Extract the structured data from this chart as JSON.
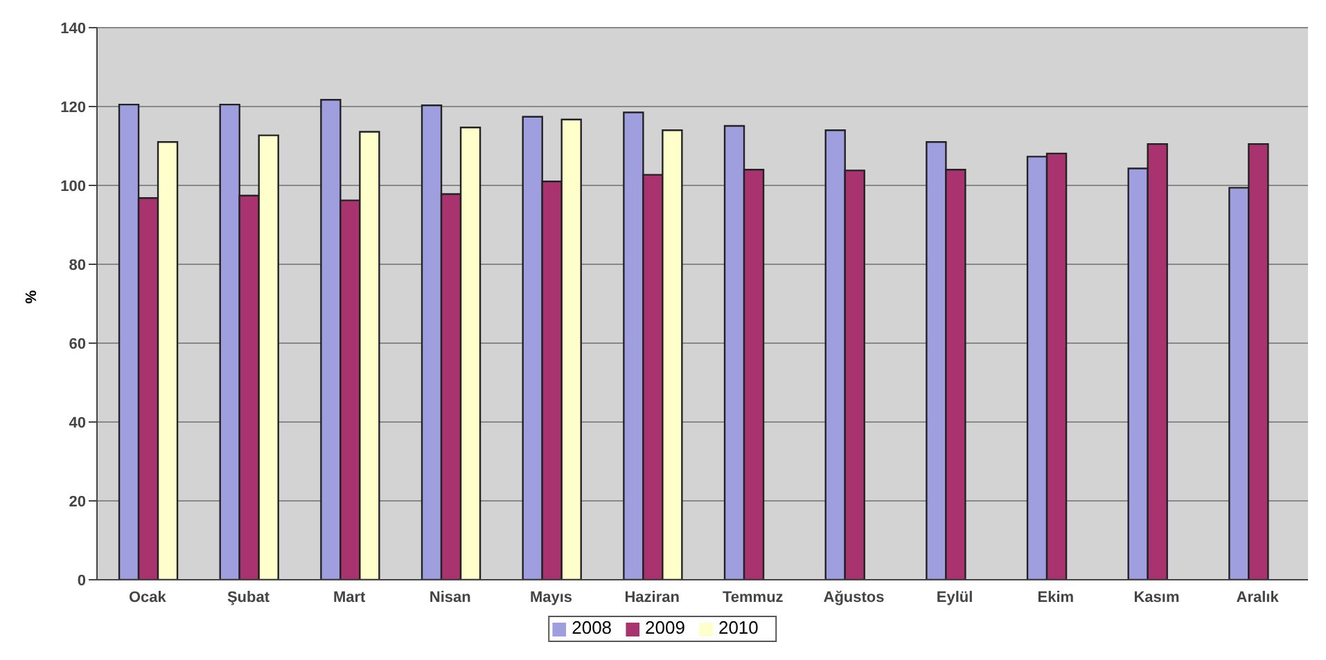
{
  "chart_data": {
    "type": "bar",
    "ylabel": "%",
    "categories": [
      "Ocak",
      "Şubat",
      "Mart",
      "Nisan",
      "Mayıs",
      "Haziran",
      "Temmuz",
      "Ağustos",
      "Eylül",
      "Ekim",
      "Kasım",
      "Aralık"
    ],
    "series": [
      {
        "name": "2008",
        "color": "#9f9fdf",
        "values": [
          120.5,
          120.5,
          121.7,
          120.3,
          117.4,
          118.5,
          115.1,
          114.0,
          111.0,
          107.3,
          104.3,
          99.4
        ]
      },
      {
        "name": "2009",
        "color": "#a8336f",
        "values": [
          96.8,
          97.4,
          96.2,
          97.8,
          101.0,
          102.7,
          104.0,
          103.8,
          104.0,
          108.1,
          110.5,
          110.5
        ]
      },
      {
        "name": "2010",
        "color": "#ffffcc",
        "values": [
          111.0,
          112.7,
          113.6,
          114.7,
          116.7,
          114.0,
          null,
          null,
          null,
          null,
          null,
          null
        ]
      }
    ],
    "ylim": [
      0,
      140
    ],
    "yticks": [
      0,
      20,
      40,
      60,
      80,
      100,
      120,
      140
    ],
    "grid": "y",
    "legend": "bottom"
  }
}
